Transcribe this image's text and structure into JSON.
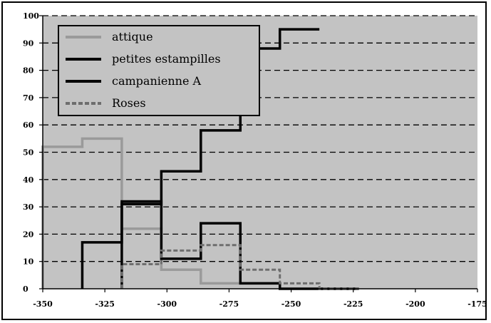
{
  "chart_data": {
    "type": "line",
    "step": true,
    "xlim": [
      -350,
      -75
    ],
    "ylim": [
      0,
      100
    ],
    "x_ticks": [
      "-350",
      "-325",
      "-300",
      "-275",
      "-250",
      "-225",
      "-200",
      "-175"
    ],
    "y_ticks": [
      "0",
      "10",
      "20",
      "30",
      "40",
      "50",
      "60",
      "70",
      "80",
      "90",
      "100"
    ],
    "grid": true,
    "legend_position": "top-left",
    "colors": {
      "plot_bg": "#c3c3c3",
      "grid": "#000000"
    },
    "series": [
      {
        "name": "attique",
        "color": "#9a9a9a",
        "dash": false,
        "x": [
          -350,
          -325,
          -300,
          -275,
          -250,
          -225
        ],
        "y": [
          52,
          55,
          22,
          7,
          2,
          2
        ]
      },
      {
        "name": "petites estampilles",
        "color": "#000000",
        "dash": false,
        "x": [
          -325,
          -300,
          -275,
          -250,
          -225,
          -200
        ],
        "y": [
          17,
          31,
          43,
          58,
          88,
          95
        ]
      },
      {
        "name": "campanienne A",
        "color": "#000000",
        "dash": false,
        "x": [
          -300,
          -275,
          -250,
          -225,
          -200,
          -175
        ],
        "y": [
          32,
          11,
          24,
          2,
          0,
          0
        ]
      },
      {
        "name": "Roses",
        "color": "#6e6e6e",
        "dash": true,
        "x": [
          -300,
          -275,
          -250,
          -225,
          -200,
          -175
        ],
        "y": [
          9,
          14,
          16,
          7,
          2,
          0
        ]
      }
    ]
  }
}
